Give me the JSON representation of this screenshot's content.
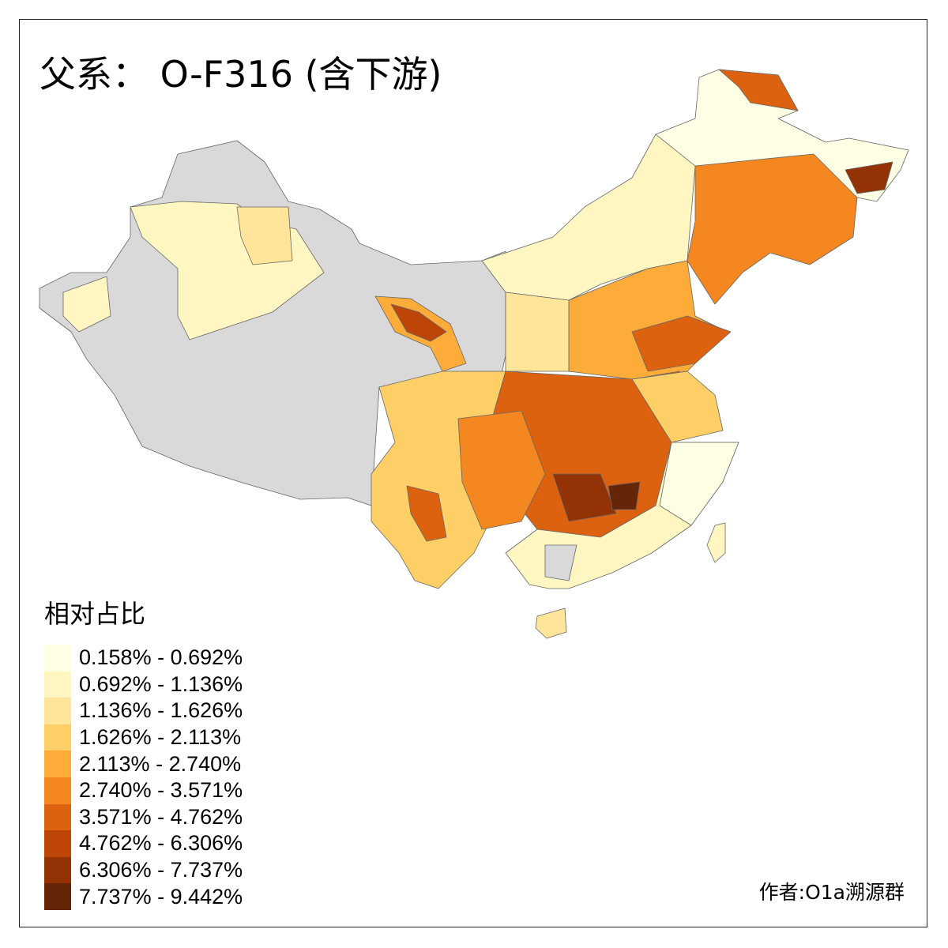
{
  "title": "父系： O-F316 (含下游)",
  "legend": {
    "title": "相对占比",
    "no_data_color": "#D9D9D9",
    "classes": [
      {
        "label": "0.158% - 0.692%",
        "color": "#FFFFE5"
      },
      {
        "label": "0.692% - 1.136%",
        "color": "#FFF6C1"
      },
      {
        "label": "1.136% - 1.626%",
        "color": "#FEE59A"
      },
      {
        "label": "1.626% - 2.113%",
        "color": "#FECF66"
      },
      {
        "label": "2.113% - 2.740%",
        "color": "#FDAC3A"
      },
      {
        "label": "2.740% - 3.571%",
        "color": "#F4871F"
      },
      {
        "label": "3.571% - 4.762%",
        "color": "#DD6210"
      },
      {
        "label": "4.762% - 6.306%",
        "color": "#BD4506"
      },
      {
        "label": "6.306% - 7.737%",
        "color": "#923205"
      },
      {
        "label": "7.737% - 9.442%",
        "color": "#662506"
      }
    ]
  },
  "credit": "作者:O1a溯源群"
}
